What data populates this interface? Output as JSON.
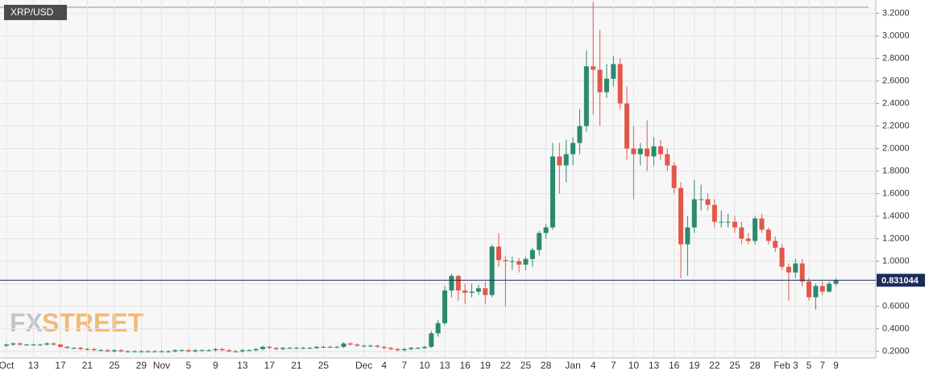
{
  "chart_data": {
    "type": "candlestick",
    "categories": [
      "Oct",
      null,
      null,
      null,
      "13",
      null,
      null,
      null,
      "17",
      null,
      null,
      null,
      "21",
      null,
      null,
      null,
      "25",
      null,
      null,
      null,
      "29",
      null,
      null,
      "Nov",
      null,
      null,
      null,
      "5",
      null,
      null,
      null,
      "9",
      null,
      null,
      null,
      "13",
      null,
      null,
      null,
      "17",
      null,
      null,
      null,
      "21",
      null,
      null,
      null,
      "25",
      null,
      null,
      null,
      null,
      null,
      "Dec",
      null,
      null,
      "4",
      null,
      null,
      "7",
      null,
      null,
      "10",
      null,
      null,
      "13",
      null,
      null,
      "16",
      null,
      null,
      "19",
      null,
      null,
      "22",
      null,
      null,
      "25",
      null,
      null,
      "28",
      null,
      null,
      null,
      "Jan",
      null,
      null,
      "4",
      null,
      null,
      "7",
      null,
      null,
      "10",
      null,
      null,
      "13",
      null,
      null,
      "16",
      null,
      null,
      "19",
      null,
      null,
      "22",
      null,
      null,
      "25",
      null,
      null,
      "28",
      null,
      null,
      null,
      "Feb",
      null,
      "3",
      null,
      "5",
      null,
      "7",
      null,
      "9"
    ],
    "series": [
      {
        "name": "XRP/USD",
        "up_color": "#2b8a6e",
        "down_color": "#e0584a",
        "open": [
          0.25,
          0.26,
          0.27,
          0.26,
          0.26,
          0.26,
          0.26,
          0.27,
          0.26,
          0.24,
          0.23,
          0.23,
          0.22,
          0.22,
          0.21,
          0.21,
          0.2,
          0.21,
          0.2,
          0.2,
          0.2,
          0.2,
          0.2,
          0.2,
          0.2,
          0.2,
          0.21,
          0.21,
          0.2,
          0.21,
          0.21,
          0.21,
          0.22,
          0.21,
          0.2,
          0.2,
          0.21,
          0.21,
          0.22,
          0.24,
          0.23,
          0.22,
          0.23,
          0.23,
          0.23,
          0.23,
          0.23,
          0.24,
          0.24,
          0.24,
          0.24,
          0.27,
          0.26,
          0.25,
          0.25,
          0.25,
          0.24,
          0.23,
          0.22,
          0.21,
          0.22,
          0.23,
          0.23,
          0.24,
          0.36,
          0.45,
          0.74,
          0.87,
          0.74,
          0.72,
          0.73,
          0.76,
          0.7,
          1.13,
          1.01,
          1.0,
          1.0,
          0.97,
          1.02,
          1.1,
          1.25,
          1.3,
          1.93,
          1.85,
          1.95,
          2.05,
          2.2,
          2.73,
          2.7,
          2.5,
          2.62,
          2.75,
          2.4,
          2.0,
          1.95,
          2.0,
          1.93,
          2.02,
          1.95,
          1.85,
          1.65,
          1.15,
          1.3,
          1.55,
          1.55,
          1.5,
          1.35,
          1.35,
          1.35,
          1.3,
          1.2,
          1.18,
          1.38,
          1.28,
          1.18,
          1.12,
          0.95,
          0.9,
          0.98,
          0.82,
          0.68,
          0.78,
          0.73,
          0.8
        ],
        "high": [
          0.27,
          0.28,
          0.28,
          0.27,
          0.27,
          0.27,
          0.28,
          0.28,
          0.27,
          0.25,
          0.24,
          0.24,
          0.23,
          0.23,
          0.22,
          0.22,
          0.22,
          0.22,
          0.21,
          0.21,
          0.21,
          0.21,
          0.21,
          0.21,
          0.21,
          0.22,
          0.22,
          0.22,
          0.22,
          0.22,
          0.22,
          0.23,
          0.23,
          0.22,
          0.21,
          0.22,
          0.22,
          0.23,
          0.25,
          0.25,
          0.24,
          0.24,
          0.24,
          0.24,
          0.24,
          0.24,
          0.25,
          0.25,
          0.25,
          0.25,
          0.28,
          0.28,
          0.27,
          0.26,
          0.26,
          0.26,
          0.25,
          0.24,
          0.23,
          0.23,
          0.24,
          0.24,
          0.25,
          0.38,
          0.48,
          0.78,
          0.89,
          0.88,
          0.8,
          0.8,
          0.79,
          0.82,
          1.15,
          1.25,
          1.05,
          1.04,
          1.03,
          1.04,
          1.12,
          1.27,
          1.33,
          2.05,
          2.05,
          2.08,
          2.1,
          2.35,
          2.87,
          3.3,
          3.05,
          2.75,
          2.82,
          2.8,
          2.55,
          2.2,
          2.05,
          2.25,
          2.1,
          2.08,
          2.0,
          1.88,
          1.7,
          1.4,
          1.72,
          1.68,
          1.6,
          1.55,
          1.45,
          1.42,
          1.4,
          1.35,
          1.25,
          1.4,
          1.42,
          1.3,
          1.22,
          1.15,
          0.98,
          1.02,
          1.02,
          0.85,
          0.8,
          0.82,
          0.82,
          0.85
        ],
        "low": [
          0.24,
          0.25,
          0.25,
          0.25,
          0.25,
          0.25,
          0.25,
          0.25,
          0.23,
          0.22,
          0.22,
          0.21,
          0.21,
          0.2,
          0.2,
          0.19,
          0.19,
          0.19,
          0.19,
          0.19,
          0.19,
          0.19,
          0.19,
          0.19,
          0.19,
          0.19,
          0.2,
          0.19,
          0.19,
          0.2,
          0.2,
          0.2,
          0.2,
          0.19,
          0.19,
          0.19,
          0.2,
          0.2,
          0.21,
          0.22,
          0.21,
          0.21,
          0.22,
          0.22,
          0.22,
          0.22,
          0.22,
          0.23,
          0.23,
          0.23,
          0.23,
          0.25,
          0.24,
          0.24,
          0.24,
          0.23,
          0.22,
          0.21,
          0.2,
          0.2,
          0.21,
          0.22,
          0.22,
          0.23,
          0.33,
          0.43,
          0.68,
          0.65,
          0.62,
          0.68,
          0.7,
          0.62,
          0.68,
          0.95,
          0.6,
          0.92,
          0.9,
          0.92,
          0.95,
          1.05,
          1.2,
          1.28,
          1.6,
          1.7,
          1.85,
          1.95,
          2.15,
          2.3,
          2.2,
          2.45,
          2.55,
          2.35,
          1.9,
          1.55,
          1.85,
          1.8,
          1.85,
          1.9,
          1.8,
          1.6,
          0.85,
          0.87,
          1.25,
          1.45,
          1.45,
          1.3,
          1.3,
          1.3,
          1.25,
          1.15,
          1.15,
          1.15,
          1.25,
          1.15,
          1.08,
          0.92,
          0.65,
          0.85,
          0.78,
          0.65,
          0.57,
          0.7,
          0.72,
          0.78
        ],
        "close": [
          0.26,
          0.27,
          0.26,
          0.26,
          0.26,
          0.26,
          0.27,
          0.26,
          0.24,
          0.23,
          0.23,
          0.22,
          0.22,
          0.21,
          0.21,
          0.2,
          0.21,
          0.2,
          0.2,
          0.2,
          0.2,
          0.2,
          0.2,
          0.2,
          0.2,
          0.21,
          0.21,
          0.2,
          0.21,
          0.21,
          0.21,
          0.22,
          0.21,
          0.2,
          0.2,
          0.21,
          0.21,
          0.22,
          0.24,
          0.23,
          0.22,
          0.23,
          0.23,
          0.23,
          0.23,
          0.23,
          0.24,
          0.24,
          0.24,
          0.24,
          0.27,
          0.26,
          0.25,
          0.25,
          0.25,
          0.24,
          0.23,
          0.22,
          0.21,
          0.22,
          0.23,
          0.23,
          0.24,
          0.36,
          0.45,
          0.74,
          0.87,
          0.74,
          0.72,
          0.73,
          0.76,
          0.7,
          1.13,
          1.01,
          1.0,
          1.0,
          0.97,
          1.02,
          1.1,
          1.25,
          1.3,
          1.93,
          1.85,
          1.95,
          2.05,
          2.2,
          2.73,
          2.7,
          2.5,
          2.62,
          2.75,
          2.4,
          2.0,
          1.95,
          2.0,
          1.93,
          2.02,
          1.95,
          1.85,
          1.65,
          1.15,
          1.3,
          1.55,
          1.55,
          1.5,
          1.35,
          1.35,
          1.35,
          1.3,
          1.2,
          1.18,
          1.38,
          1.28,
          1.18,
          1.12,
          0.95,
          0.9,
          0.98,
          0.82,
          0.68,
          0.78,
          0.73,
          0.8,
          0.83
        ]
      }
    ],
    "last_price": 0.831044,
    "ylim": [
      0.14,
      3.29
    ],
    "yticks": [
      {
        "value": 0.2,
        "label": "0.2000"
      },
      {
        "value": 0.4,
        "label": "0.4000"
      },
      {
        "value": 0.6,
        "label": "0.6000"
      },
      {
        "value": 0.8,
        "label": "0.8000"
      },
      {
        "value": 1.0,
        "label": "1.0000"
      },
      {
        "value": 1.2,
        "label": "1.2000"
      },
      {
        "value": 1.4,
        "label": "1.4000"
      },
      {
        "value": 1.6,
        "label": "1.6000"
      },
      {
        "value": 1.8,
        "label": "1.8000"
      },
      {
        "value": 2.0,
        "label": "2.0000"
      },
      {
        "value": 2.2,
        "label": "2.2000"
      },
      {
        "value": 2.4,
        "label": "2.4000"
      },
      {
        "value": 2.6,
        "label": "2.6000"
      },
      {
        "value": 2.8,
        "label": "2.8000"
      },
      {
        "value": 3.0,
        "label": "3.0000"
      },
      {
        "value": 3.2,
        "label": "3.2000"
      }
    ],
    "grid": true,
    "watermark": {
      "left": "FX",
      "right": "STREET"
    }
  }
}
